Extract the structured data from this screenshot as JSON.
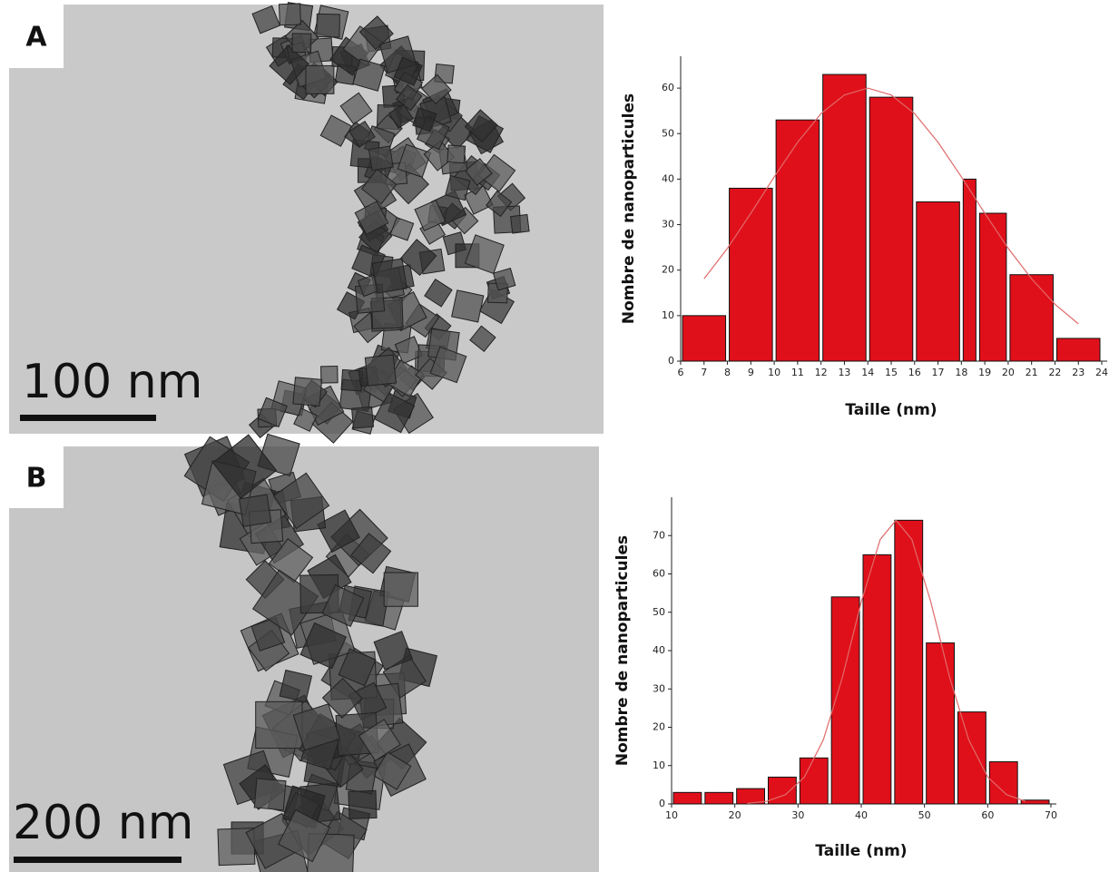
{
  "panels": [
    {
      "label": "A",
      "scale_bar": "100 nm"
    },
    {
      "label": "B",
      "scale_bar": "200 nm"
    }
  ],
  "chart_data": [
    {
      "type": "histogram",
      "x_label": "Taille (nm)",
      "y_label": "Nombre de nanoparticules",
      "bins": [
        6,
        8,
        10,
        12,
        14,
        16,
        18,
        18.7,
        20,
        22,
        24
      ],
      "values": [
        10,
        38,
        53,
        63,
        58,
        35,
        40,
        32.5,
        19,
        5
      ],
      "color": "#e0101a",
      "xlim": [
        6,
        24
      ],
      "xticks": [
        6,
        7,
        8,
        9,
        10,
        11,
        12,
        13,
        14,
        15,
        16,
        17,
        18,
        19,
        20,
        21,
        22,
        23,
        24
      ],
      "ylim": [
        0,
        67
      ],
      "yticks": [
        0,
        10,
        20,
        30,
        40,
        50,
        60
      ],
      "fit": {
        "color": "#e06a6a",
        "x": [
          7,
          8,
          9,
          10,
          11,
          12,
          13,
          14,
          15,
          16,
          17,
          18,
          19,
          20,
          21,
          22,
          23
        ],
        "values": [
          18.1,
          24.8,
          32.5,
          40.5,
          48.1,
          54.4,
          58.5,
          60,
          58.5,
          54.4,
          48.1,
          40.5,
          32.5,
          24.8,
          18.1,
          12.5,
          8.2
        ]
      }
    },
    {
      "type": "histogram",
      "x_label": "Taille (nm)",
      "y_label": "Nombre de nanoparticules",
      "bins": [
        10,
        15,
        20,
        25,
        30,
        35,
        40,
        45,
        50,
        55,
        60,
        65,
        70
      ],
      "values": [
        3,
        3,
        4,
        7,
        12,
        54,
        65,
        74,
        42,
        24,
        11,
        1
      ],
      "color": "#e0101a",
      "xlim": [
        10,
        70
      ],
      "xticks": [
        10,
        20,
        30,
        40,
        50,
        60,
        70
      ],
      "ylim": [
        0,
        80
      ],
      "yticks": [
        0,
        10,
        20,
        30,
        40,
        50,
        60,
        70
      ],
      "fit": {
        "color": "#e06a6a",
        "x": [
          22,
          25,
          28,
          31,
          34,
          37,
          40,
          43,
          45.5,
          48,
          51,
          54,
          57,
          60,
          63,
          66
        ],
        "values": [
          0.15,
          0.66,
          2.4,
          7.0,
          16.7,
          32.9,
          52.7,
          69.0,
          74,
          69.0,
          52.7,
          32.9,
          16.7,
          7.0,
          2.4,
          0.66
        ]
      }
    }
  ]
}
